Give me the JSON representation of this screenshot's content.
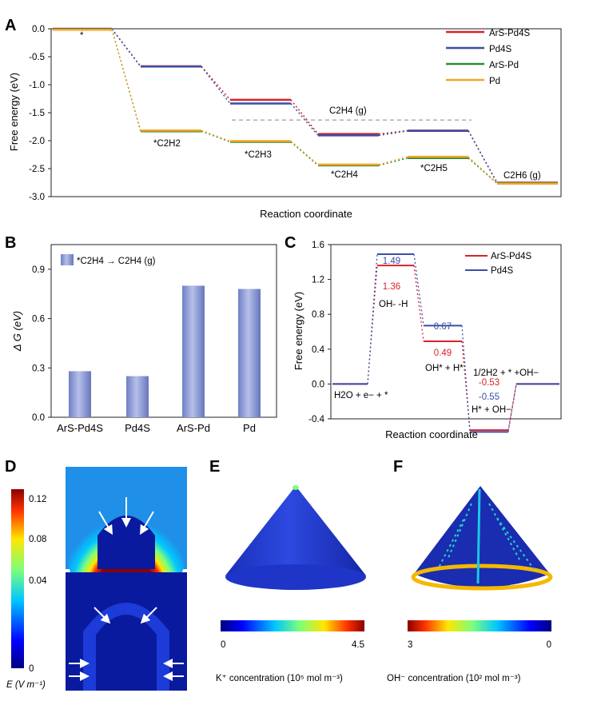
{
  "panels": {
    "a": "A",
    "b": "B",
    "c": "C",
    "d": "D",
    "e": "E",
    "f": "F"
  },
  "chart_a": {
    "type": "line",
    "title": "",
    "xlabel": "Reaction coordinate",
    "ylabel": "Free energy (eV)",
    "ylim": [
      -3.0,
      0.0
    ],
    "yticks": [
      "0.0",
      "-0.5",
      "-1.0",
      "-1.5",
      "-2.0",
      "-2.5",
      "-3.0"
    ],
    "steps": [
      "*",
      "*C2H2",
      "*C2H3",
      "*C2H4",
      "*C2H5",
      "C2H6 (g)"
    ],
    "series": [
      {
        "name": "ArS-Pd4S",
        "color": "#d9202e",
        "values": [
          0.0,
          -0.67,
          -1.27,
          -1.88,
          -1.82,
          -2.75
        ]
      },
      {
        "name": "Pd4S",
        "color": "#3a4fa6",
        "values": [
          0.0,
          -0.67,
          -1.33,
          -1.9,
          -1.82,
          -2.75
        ]
      },
      {
        "name": "ArS-Pd",
        "color": "#2e8b3a",
        "values": [
          0.0,
          -1.82,
          -2.01,
          -2.43,
          -2.3,
          -2.75
        ]
      },
      {
        "name": "Pd",
        "color": "#f5a623",
        "values": [
          0.0,
          -1.8,
          -1.99,
          -2.41,
          -2.27,
          -2.75
        ]
      }
    ],
    "reference": {
      "label": "C2H4 (g)",
      "value": -1.63
    }
  },
  "chart_b": {
    "type": "bar",
    "legend": "*C2H4 → C2H4 (g)",
    "ylabel": "Δ G (eV)",
    "ylim": [
      0.0,
      1.05
    ],
    "yticks": [
      "0.0",
      "0.3",
      "0.6",
      "0.9"
    ],
    "categories": [
      "ArS-Pd4S",
      "Pd4S",
      "ArS-Pd",
      "Pd"
    ],
    "values": [
      0.28,
      0.25,
      0.8,
      0.78
    ]
  },
  "chart_c": {
    "type": "line",
    "xlabel": "Reaction coordinate",
    "ylabel": "Free energy (eV)",
    "ylim": [
      -0.4,
      1.6
    ],
    "yticks": [
      "1.6",
      "1.2",
      "0.8",
      "0.4",
      "0.0",
      "-0.4"
    ],
    "series": [
      {
        "name": "ArS-Pd4S",
        "color": "#d9202e",
        "values": [
          0.0,
          1.36,
          0.49,
          -0.53,
          0.0
        ]
      },
      {
        "name": "Pd4S",
        "color": "#3a4fa6",
        "values": [
          0.0,
          1.49,
          0.67,
          -0.55,
          0.0
        ]
      }
    ],
    "value_labels": {
      "a1": "1.49",
      "a2": "1.36",
      "b1": "0.67",
      "b2": "0.49",
      "c1": "-0.53",
      "c2": "-0.55"
    },
    "step_labels": [
      "H2O + e− + *",
      "OH- -H",
      "OH* + H*",
      "1/2H2 + * +OH−",
      "H* + OH−"
    ]
  },
  "maps": {
    "d_colorbar_ticks": [
      "0.12",
      "0.08",
      "0.04",
      "0"
    ],
    "d_colorbar_label": "E (V m⁻¹)",
    "e_colorbar_min": "0",
    "e_colorbar_max": "4.5",
    "e_label": "K⁺ concentration (10⁵ mol m⁻³)",
    "f_colorbar_min": "3",
    "f_colorbar_max": "0",
    "f_label": "OH⁻ concentration (10² mol m⁻³)"
  }
}
